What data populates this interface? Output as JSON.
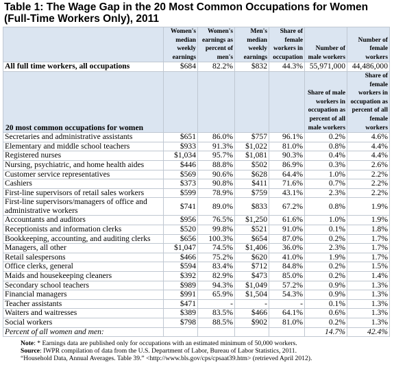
{
  "title": "Table 1:  The Wage Gap in the 20 Most Common Occupations for Women (Full-Time Workers Only), 2011",
  "header1": [
    "Women's median weekly earnings",
    "Women's earnings as percent of men's",
    "Men's median weekly earnings",
    "Share of female workers in occupation",
    "Number of male workers",
    "Number of female workers"
  ],
  "all_workers": {
    "label": "All full time workers, all occupations",
    "values": [
      "$684",
      "82.2%",
      "$832",
      "44.3%",
      "55,971,000",
      "44,486,000"
    ]
  },
  "section_label": "20 most common occupations for women",
  "header2": [
    "Share of male workers in occupation as percent of all male workers",
    "Share of female workers in occupation as percent of all female workers"
  ],
  "rows": [
    {
      "label": "Secretaries and administrative assistants",
      "v": [
        "$651",
        "86.0%",
        "$757",
        "96.1%",
        "0.2%",
        "4.6%"
      ]
    },
    {
      "label": "Elementary and middle school teachers",
      "v": [
        "$933",
        "91.3%",
        "$1,022",
        "81.0%",
        "0.8%",
        "4.4%"
      ]
    },
    {
      "label": "Registered nurses",
      "v": [
        "$1,034",
        "95.7%",
        "$1,081",
        "90.3%",
        "0.4%",
        "4.4%"
      ]
    },
    {
      "label": "Nursing, psychiatric, and home health aides",
      "v": [
        "$446",
        "88.8%",
        "$502",
        "86.9%",
        "0.3%",
        "2.6%"
      ]
    },
    {
      "label": "Customer service representatives",
      "v": [
        "$569",
        "90.6%",
        "$628",
        "64.4%",
        "1.0%",
        "2.2%"
      ]
    },
    {
      "label": "Cashiers",
      "v": [
        "$373",
        "90.8%",
        "$411",
        "71.6%",
        "0.7%",
        "2.2%"
      ]
    },
    {
      "label": "First-line supervisors of retail sales workers",
      "v": [
        "$599",
        "78.9%",
        "$759",
        "43.1%",
        "2.3%",
        "2.2%"
      ]
    },
    {
      "label": "First-line supervisors/managers of office and administrative workers",
      "v": [
        "$741",
        "89.0%",
        "$833",
        "67.2%",
        "0.8%",
        "1.9%"
      ]
    },
    {
      "label": "Accountants and auditors",
      "v": [
        "$956",
        "76.5%",
        "$1,250",
        "61.6%",
        "1.0%",
        "1.9%"
      ]
    },
    {
      "label": "Receptionists and information clerks",
      "v": [
        "$520",
        "99.8%",
        "$521",
        "91.0%",
        "0.1%",
        "1.8%"
      ]
    },
    {
      "label": "Bookkeeping, accounting, and auditing clerks",
      "v": [
        "$656",
        "100.3%",
        "$654",
        "87.0%",
        "0.2%",
        "1.7%"
      ]
    },
    {
      "label": "Managers, all other",
      "v": [
        "$1,047",
        "74.5%",
        "$1,406",
        "36.0%",
        "2.3%",
        "1.7%"
      ]
    },
    {
      "label": "Retail salespersons",
      "v": [
        "$466",
        "75.2%",
        "$620",
        "41.0%",
        "1.9%",
        "1.7%"
      ]
    },
    {
      "label": "Office clerks, general",
      "v": [
        "$594",
        "83.4%",
        "$712",
        "84.8%",
        "0.2%",
        "1.5%"
      ]
    },
    {
      "label": "Maids and housekeeping cleaners",
      "v": [
        "$392",
        "82.9%",
        "$473",
        "85.0%",
        "0.2%",
        "1.4%"
      ]
    },
    {
      "label": "Secondary school teachers",
      "v": [
        "$989",
        "94.3%",
        "$1,049",
        "57.2%",
        "0.9%",
        "1.3%"
      ]
    },
    {
      "label": "Financial managers",
      "v": [
        "$991",
        "65.9%",
        "$1,504",
        "54.3%",
        "0.9%",
        "1.3%"
      ]
    },
    {
      "label": "Teacher assistants",
      "v": [
        "$471",
        "-",
        "-",
        "-",
        "0.1%",
        "1.3%"
      ]
    },
    {
      "label": "Waiters and waitresses",
      "v": [
        "$389",
        "83.5%",
        "$466",
        "64.1%",
        "0.6%",
        "1.3%"
      ]
    },
    {
      "label": "Social workers",
      "v": [
        "$798",
        "88.5%",
        "$902",
        "81.0%",
        "0.2%",
        "1.3%"
      ]
    }
  ],
  "percent_row": {
    "label": "Percent of all women and men:",
    "male": "14.7%",
    "female": "42.4%"
  },
  "notes": {
    "note_label": "Note",
    "note_text": ": * Earnings data are published only for occupations with an estimated minimum of 50,000 workers.",
    "source_label": "Source",
    "source_text": ":  IWPR compilation of data from the U.S. Department of Labor, Bureau of Labor Statistics, 2011.",
    "source_line2": "“Household Data, Annual Averages. Table 39.” <http://www.bls.gov/cps/cpsaat39.htm> (retrieved April 2012)."
  }
}
